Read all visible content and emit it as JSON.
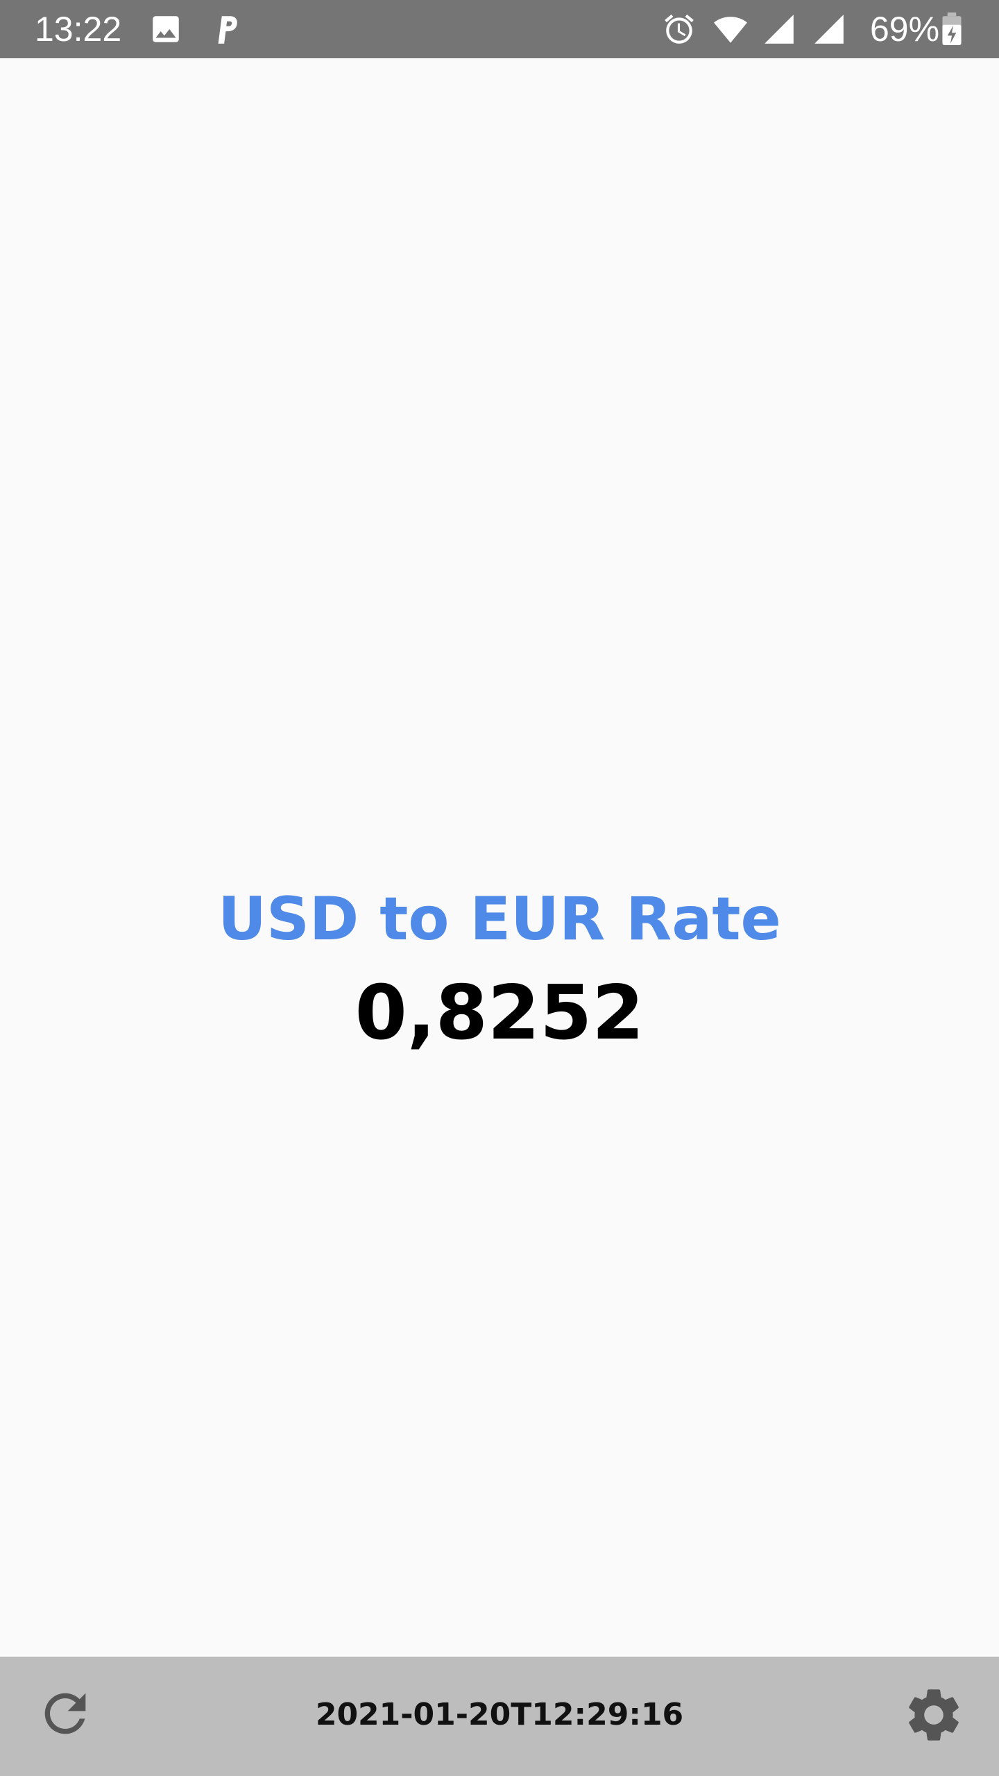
{
  "status_bar": {
    "time": "13:22",
    "battery_percent": "69%",
    "icons": [
      "image-icon",
      "p-app-icon",
      "alarm-icon",
      "wifi-icon",
      "signal-icon",
      "signal-icon-2",
      "battery-charging-icon"
    ]
  },
  "main": {
    "title": "USD to EUR Rate",
    "rate": "0,8252"
  },
  "bottom_bar": {
    "timestamp": "2021-01-20T12:29:16",
    "left_icon": "refresh-icon",
    "right_icon": "settings-gear-icon"
  },
  "colors": {
    "status_bar": "#757575",
    "background": "#fafafa",
    "accent": "#4f8ae8",
    "bottom_bar": "#bdbdbd",
    "icon": "#555555"
  }
}
